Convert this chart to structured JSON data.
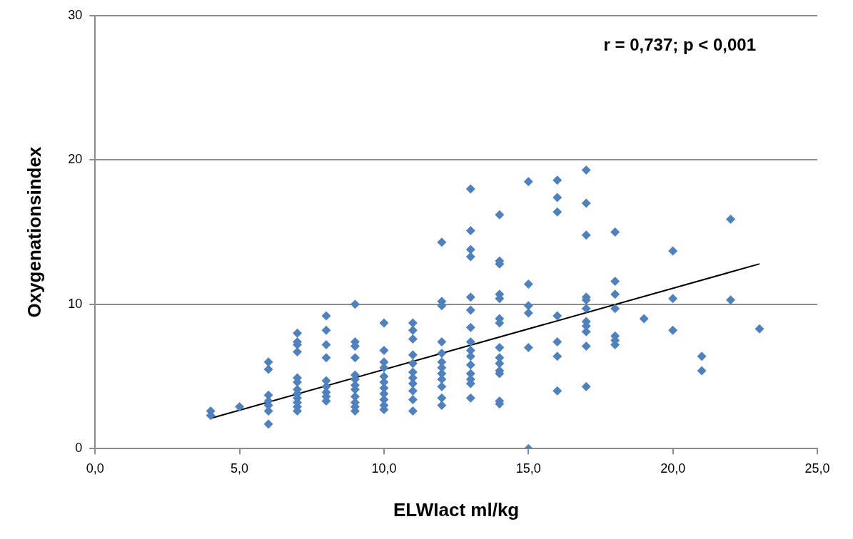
{
  "chart_data": {
    "type": "scatter",
    "xlabel": "ELWIact ml/kg",
    "ylabel": "Oxygenationsindex",
    "annotations": [
      "r = 0,737; p < 0,001"
    ],
    "xlim": [
      0,
      25
    ],
    "xticks": [
      {
        "value": 0,
        "label": "0,0"
      },
      {
        "value": 5,
        "label": "5,0"
      },
      {
        "value": 10,
        "label": "10,0"
      },
      {
        "value": 15,
        "label": "15,0"
      },
      {
        "value": 20,
        "label": "20,0"
      },
      {
        "value": 25,
        "label": "25,0"
      }
    ],
    "ylim": [
      0,
      30
    ],
    "yticks": [
      0,
      10,
      20,
      30
    ],
    "grid": "y",
    "legend": false,
    "marker": "diamond",
    "series": [
      {
        "type": "scatter",
        "color": "#4f81bd",
        "x": [
          4,
          4,
          5,
          6,
          6,
          6,
          6,
          6,
          6,
          6,
          7,
          7,
          7,
          7,
          7,
          7,
          7,
          7,
          7,
          7,
          7,
          7,
          8,
          8,
          8,
          8,
          8,
          8,
          8,
          8,
          8,
          9,
          9,
          9,
          9,
          9,
          9,
          9,
          9,
          9,
          9,
          9,
          9,
          10,
          10,
          10,
          10,
          10,
          10,
          10,
          10,
          10,
          10,
          10,
          11,
          11,
          11,
          11,
          11,
          11,
          11,
          11,
          11,
          11,
          11,
          12,
          12,
          12,
          12,
          12,
          12,
          12,
          12,
          12,
          12,
          12,
          12,
          13,
          13,
          13,
          13,
          13,
          13,
          13,
          13,
          13,
          13,
          13,
          13,
          13,
          13,
          13,
          14,
          14,
          14,
          14,
          14,
          14,
          14,
          14,
          14,
          14,
          14,
          14,
          14,
          14,
          15,
          15,
          15,
          15,
          15,
          15,
          16,
          16,
          16,
          16,
          16,
          16,
          16,
          17,
          17,
          17,
          17,
          17,
          17,
          17,
          17,
          17,
          17,
          17,
          18,
          18,
          18,
          18,
          18,
          18,
          18,
          19,
          20,
          20,
          20,
          21,
          21,
          22,
          22,
          23
        ],
        "values": [
          2.6,
          2.3,
          2.9,
          6.0,
          5.5,
          3.7,
          3.3,
          3.0,
          2.6,
          1.7,
          8.0,
          7.4,
          7.2,
          6.7,
          4.9,
          4.6,
          4.1,
          3.8,
          3.5,
          3.2,
          2.9,
          2.6,
          9.2,
          8.2,
          7.2,
          6.3,
          4.7,
          4.3,
          3.9,
          3.6,
          3.3,
          10.0,
          7.4,
          7.1,
          6.3,
          5.1,
          4.8,
          4.4,
          4.1,
          3.6,
          3.2,
          2.9,
          2.6,
          8.7,
          6.8,
          6.0,
          5.6,
          5.0,
          4.6,
          4.2,
          3.8,
          3.4,
          3.0,
          2.7,
          8.7,
          8.2,
          7.6,
          6.5,
          5.9,
          5.3,
          4.9,
          4.5,
          4.0,
          3.4,
          2.6,
          14.3,
          10.2,
          9.9,
          7.4,
          6.6,
          6.0,
          5.6,
          5.2,
          4.8,
          4.3,
          3.5,
          3.0,
          18.0,
          15.1,
          13.8,
          13.3,
          10.5,
          9.6,
          8.4,
          7.4,
          6.8,
          6.4,
          5.8,
          5.2,
          4.8,
          4.5,
          3.5,
          16.2,
          13.0,
          12.8,
          10.7,
          10.4,
          9.0,
          8.7,
          7.0,
          6.3,
          5.9,
          5.4,
          5.2,
          3.3,
          3.1,
          18.5,
          11.4,
          9.9,
          9.4,
          7.0,
          0,
          18.6,
          17.4,
          16.4,
          9.2,
          7.4,
          6.4,
          4.0,
          19.3,
          17.0,
          14.8,
          10.5,
          10.3,
          9.7,
          8.8,
          8.5,
          8.1,
          7.1,
          4.3,
          15.0,
          11.6,
          10.7,
          9.7,
          7.8,
          7.5,
          7.2,
          9.0,
          13.7,
          10.4,
          8.2,
          6.4,
          5.4,
          15.9,
          10.3,
          8.3
        ]
      },
      {
        "type": "line",
        "color": "#000000",
        "marker": "none",
        "x": [
          4,
          23
        ],
        "values": [
          2.1,
          12.8
        ]
      }
    ]
  }
}
